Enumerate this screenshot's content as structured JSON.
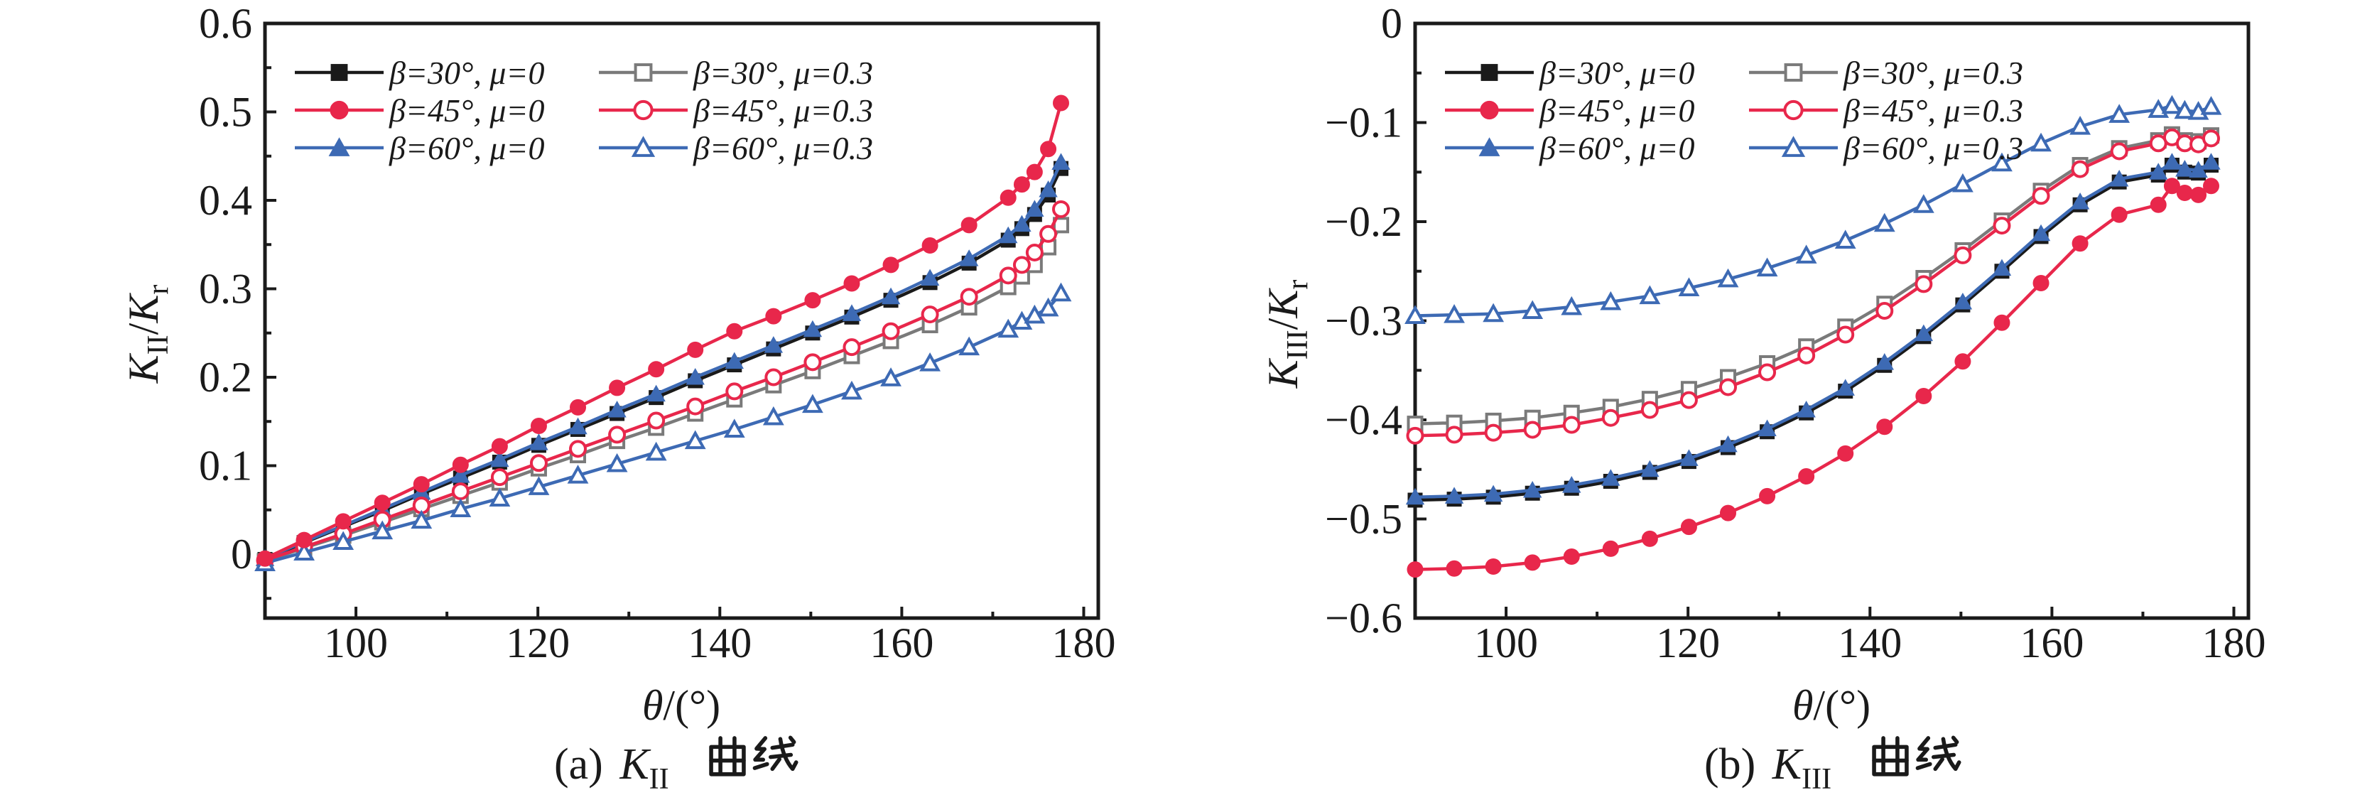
{
  "figure_background": "#ffffff",
  "colors": {
    "black": "#1a1a1a",
    "gray": "#7a7a7a",
    "red": "#e8274b",
    "blue": "#3d6ab4",
    "frame": "#1a1a1a",
    "open_marker_fill": "#ffffff"
  },
  "legend": {
    "entries": [
      {
        "label": "β=30°, μ=0",
        "color": "#1a1a1a",
        "marker": "square",
        "fill": "filled"
      },
      {
        "label": "β=30°, μ=0.3",
        "color": "#7a7a7a",
        "marker": "square",
        "fill": "open"
      },
      {
        "label": "β=45°, μ=0",
        "color": "#e8274b",
        "marker": "circle",
        "fill": "filled"
      },
      {
        "label": "β=45°, μ=0.3",
        "color": "#e8274b",
        "marker": "circle",
        "fill": "open"
      },
      {
        "label": "β=60°, μ=0",
        "color": "#3d6ab4",
        "marker": "triangle",
        "fill": "filled"
      },
      {
        "label": "β=60°, μ=0.3",
        "color": "#3d6ab4",
        "marker": "triangle",
        "fill": "open"
      }
    ]
  },
  "charts": [
    {
      "id": "a",
      "ylabel": {
        "k1": "K",
        "sub1": "II",
        "mid": "/",
        "k2": "K",
        "sub2": "r"
      },
      "xlabel": {
        "sym": "θ",
        "rest": "/(°)"
      },
      "caption": {
        "prefix": "(a) ",
        "k": "K",
        "sub": "II",
        "cn": "曲线"
      }
    },
    {
      "id": "b",
      "ylabel": {
        "k1": "K",
        "sub1": "III",
        "mid": "/",
        "k2": "K",
        "sub2": "r"
      },
      "xlabel": {
        "sym": "θ",
        "rest": "/(°)"
      },
      "caption": {
        "prefix": "(b) ",
        "k": "K",
        "sub": "III",
        "cn": "曲线"
      }
    }
  ],
  "chart_data": [
    {
      "type": "line",
      "panel": "a",
      "title": "(a) KII 曲线",
      "xlabel": "θ/(°)",
      "ylabel": "KII/Kr",
      "xlim": [
        90,
        181.6
      ],
      "ylim": [
        -0.0723,
        0.6
      ],
      "grid": false,
      "legend_position": "top-left-inside",
      "xticks": [
        100,
        120,
        140,
        160,
        180
      ],
      "xtick_labels": [
        "100",
        "120",
        "140",
        "160",
        "180"
      ],
      "xminor": [
        110,
        130,
        150,
        170
      ],
      "yticks": [
        0,
        0.1,
        0.2,
        0.3,
        0.4,
        0.5,
        0.6
      ],
      "ytick_labels": [
        "0",
        "0.1",
        "0.2",
        "0.3",
        "0.4",
        "0.5",
        "0.6"
      ],
      "yminor": [
        -0.05,
        0.05,
        0.15,
        0.25,
        0.35,
        0.45,
        0.55
      ],
      "x": [
        90,
        94.3,
        98.6,
        102.9,
        107.2,
        111.5,
        115.8,
        120.1,
        124.4,
        128.7,
        133,
        137.3,
        141.6,
        145.9,
        150.2,
        154.5,
        158.8,
        163.1,
        167.4,
        171.7,
        173.2,
        174.6,
        176.1,
        177.5
      ],
      "series": [
        {
          "name": "β=30°, μ=0",
          "color": "#1a1a1a",
          "marker": "square",
          "fill": "filled",
          "values": [
            -0.006,
            0.013,
            0.031,
            0.049,
            0.068,
            0.086,
            0.104,
            0.123,
            0.141,
            0.159,
            0.177,
            0.196,
            0.214,
            0.232,
            0.25,
            0.268,
            0.287,
            0.307,
            0.329,
            0.355,
            0.368,
            0.384,
            0.406,
            0.436
          ]
        },
        {
          "name": "β=30°, μ=0.3",
          "color": "#7a7a7a",
          "marker": "square",
          "fill": "open",
          "values": [
            -0.008,
            0.007,
            0.021,
            0.036,
            0.051,
            0.066,
            0.081,
            0.097,
            0.112,
            0.128,
            0.143,
            0.159,
            0.175,
            0.191,
            0.207,
            0.224,
            0.241,
            0.259,
            0.279,
            0.302,
            0.314,
            0.327,
            0.347,
            0.372
          ]
        },
        {
          "name": "β=60°, μ=0",
          "color": "#3d6ab4",
          "marker": "triangle",
          "fill": "filled",
          "values": [
            -0.005,
            0.014,
            0.032,
            0.051,
            0.07,
            0.089,
            0.107,
            0.126,
            0.144,
            0.163,
            0.181,
            0.2,
            0.218,
            0.236,
            0.254,
            0.272,
            0.291,
            0.312,
            0.334,
            0.36,
            0.373,
            0.39,
            0.412,
            0.443
          ]
        },
        {
          "name": "β=45°, μ=0.3",
          "color": "#e8274b",
          "marker": "circle",
          "fill": "open",
          "values": [
            -0.007,
            0.008,
            0.023,
            0.039,
            0.055,
            0.071,
            0.087,
            0.103,
            0.119,
            0.135,
            0.151,
            0.167,
            0.184,
            0.2,
            0.217,
            0.234,
            0.252,
            0.271,
            0.291,
            0.315,
            0.327,
            0.341,
            0.362,
            0.39
          ]
        },
        {
          "name": "β=60°, μ=0.3",
          "color": "#3d6ab4",
          "marker": "triangle",
          "fill": "open",
          "values": [
            -0.01,
            0.002,
            0.014,
            0.026,
            0.038,
            0.051,
            0.063,
            0.076,
            0.089,
            0.102,
            0.115,
            0.128,
            0.141,
            0.155,
            0.169,
            0.184,
            0.199,
            0.216,
            0.234,
            0.254,
            0.263,
            0.27,
            0.278,
            0.295
          ]
        },
        {
          "name": "β=45°, μ=0",
          "color": "#e8274b",
          "marker": "circle",
          "fill": "filled",
          "values": [
            -0.005,
            0.016,
            0.037,
            0.058,
            0.079,
            0.101,
            0.122,
            0.145,
            0.166,
            0.188,
            0.209,
            0.231,
            0.252,
            0.269,
            0.287,
            0.306,
            0.327,
            0.349,
            0.372,
            0.403,
            0.418,
            0.432,
            0.458,
            0.51
          ]
        }
      ]
    },
    {
      "type": "line",
      "panel": "b",
      "title": "(b) KIII 曲线",
      "xlabel": "θ/(°)",
      "ylabel": "KIII/Kr",
      "xlim": [
        90,
        181.6
      ],
      "ylim": [
        -0.6,
        0
      ],
      "grid": false,
      "legend_position": "top-left-inside",
      "xticks": [
        100,
        120,
        140,
        160,
        180
      ],
      "xtick_labels": [
        "100",
        "120",
        "140",
        "160",
        "180"
      ],
      "xminor": [
        110,
        130,
        150,
        170
      ],
      "yticks": [
        0,
        -0.1,
        -0.2,
        -0.3,
        -0.4,
        -0.5,
        -0.6
      ],
      "ytick_labels": [
        "0",
        "−0.1",
        "−0.2",
        "−0.3",
        "−0.4",
        "−0.5",
        "−0.6"
      ],
      "yminor": [
        -0.05,
        -0.15,
        -0.25,
        -0.35,
        -0.45,
        -0.55
      ],
      "x": [
        90,
        94.3,
        98.6,
        102.9,
        107.2,
        111.5,
        115.8,
        120.1,
        124.4,
        128.7,
        133,
        137.3,
        141.6,
        145.9,
        150.2,
        154.5,
        158.8,
        163.1,
        167.4,
        171.7,
        173.2,
        174.6,
        176.1,
        177.5
      ],
      "series": [
        {
          "name": "β=30°, μ=0",
          "color": "#1a1a1a",
          "marker": "square",
          "fill": "filled",
          "values": [
            -0.481,
            -0.48,
            -0.478,
            -0.474,
            -0.469,
            -0.462,
            -0.453,
            -0.442,
            -0.428,
            -0.412,
            -0.393,
            -0.371,
            -0.345,
            -0.316,
            -0.284,
            -0.25,
            -0.215,
            -0.183,
            -0.16,
            -0.153,
            -0.143,
            -0.15,
            -0.151,
            -0.143
          ]
        },
        {
          "name": "β=30°, μ=0.3",
          "color": "#7a7a7a",
          "marker": "square",
          "fill": "open",
          "values": [
            -0.404,
            -0.403,
            -0.401,
            -0.398,
            -0.393,
            -0.387,
            -0.379,
            -0.369,
            -0.357,
            -0.343,
            -0.326,
            -0.306,
            -0.283,
            -0.257,
            -0.229,
            -0.199,
            -0.169,
            -0.143,
            -0.126,
            -0.118,
            -0.112,
            -0.118,
            -0.119,
            -0.113
          ]
        },
        {
          "name": "β=60°, μ=0",
          "color": "#3d6ab4",
          "marker": "triangle",
          "fill": "filled",
          "values": [
            -0.478,
            -0.477,
            -0.475,
            -0.471,
            -0.466,
            -0.459,
            -0.45,
            -0.439,
            -0.425,
            -0.409,
            -0.39,
            -0.368,
            -0.342,
            -0.313,
            -0.281,
            -0.247,
            -0.212,
            -0.18,
            -0.157,
            -0.15,
            -0.14,
            -0.147,
            -0.148,
            -0.14
          ]
        },
        {
          "name": "β=45°, μ=0.3",
          "color": "#e8274b",
          "marker": "circle",
          "fill": "open",
          "values": [
            -0.416,
            -0.415,
            -0.413,
            -0.41,
            -0.405,
            -0.398,
            -0.39,
            -0.38,
            -0.367,
            -0.352,
            -0.335,
            -0.314,
            -0.29,
            -0.263,
            -0.234,
            -0.204,
            -0.174,
            -0.147,
            -0.129,
            -0.121,
            -0.115,
            -0.121,
            -0.122,
            -0.116
          ]
        },
        {
          "name": "β=60°, μ=0.3",
          "color": "#3d6ab4",
          "marker": "triangle",
          "fill": "open",
          "values": [
            -0.295,
            -0.294,
            -0.293,
            -0.29,
            -0.286,
            -0.281,
            -0.275,
            -0.267,
            -0.258,
            -0.247,
            -0.234,
            -0.219,
            -0.202,
            -0.183,
            -0.162,
            -0.141,
            -0.121,
            -0.104,
            -0.092,
            -0.087,
            -0.083,
            -0.088,
            -0.089,
            -0.084
          ]
        },
        {
          "name": "β=45°, μ=0",
          "color": "#e8274b",
          "marker": "circle",
          "fill": "filled",
          "values": [
            -0.551,
            -0.55,
            -0.548,
            -0.544,
            -0.538,
            -0.53,
            -0.52,
            -0.508,
            -0.494,
            -0.477,
            -0.457,
            -0.434,
            -0.407,
            -0.376,
            -0.341,
            -0.302,
            -0.262,
            -0.222,
            -0.193,
            -0.183,
            -0.164,
            -0.171,
            -0.173,
            -0.164
          ]
        }
      ]
    }
  ]
}
